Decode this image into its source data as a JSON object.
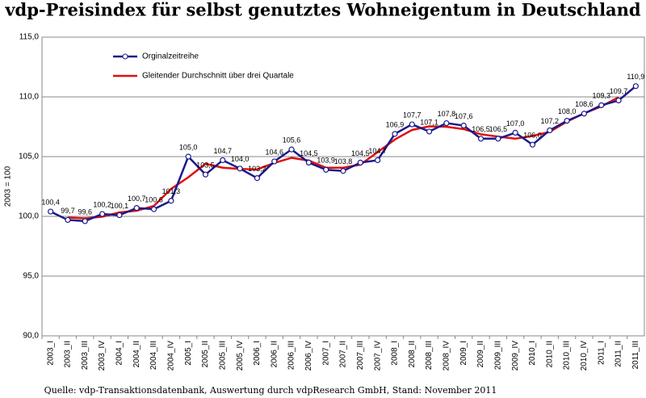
{
  "chart_data": {
    "type": "line",
    "title": "vdp-Preisindex für selbst genutztes Wohneigentum in Deutschland",
    "y_label": "2003 = 100",
    "source": "Quelle: vdp-Transaktionsdatenbank, Auswertung durch vdpResearch GmbH, Stand: November 2011",
    "categories": [
      "2003_I",
      "2003_II",
      "2003_III",
      "2003_IV",
      "2004_I",
      "2004_II",
      "2004_III",
      "2004_IV",
      "2005_I",
      "2005_II",
      "2005_III",
      "2005_IV",
      "2006_I",
      "2006_II",
      "2006_III",
      "2006_IV",
      "2007_I",
      "2007_II",
      "2007_III",
      "2007_IV",
      "2008_I",
      "2008_II",
      "2008_III",
      "2008_IV",
      "2009_I",
      "2009_II",
      "2009_III",
      "2009_IV",
      "2010_I",
      "2010_II",
      "2010_III",
      "2010_IV",
      "2011_I",
      "2011_II",
      "2011_III"
    ],
    "series": [
      {
        "name": "Orginalzeitreihe",
        "color": "#1a1a8c",
        "marker": true,
        "values": [
          100.4,
          99.7,
          99.6,
          100.2,
          100.1,
          100.7,
          100.6,
          101.3,
          105.0,
          103.5,
          104.7,
          104.0,
          103.2,
          104.6,
          105.6,
          104.5,
          103.9,
          103.8,
          104.5,
          104.7,
          106.9,
          107.7,
          107.1,
          107.8,
          107.6,
          106.5,
          106.5,
          107.0,
          106.0,
          107.2,
          108.0,
          108.6,
          109.3,
          109.7,
          110.9
        ],
        "value_labels": [
          "100,4",
          "99,7",
          "99,6",
          "100,2",
          "100,1",
          "100,7",
          "100,6",
          "101,3",
          "105,0",
          "103,5",
          "104,7",
          "104,0",
          "103,2",
          "104,6",
          "105,6",
          "104,5",
          "103,9",
          "103,8",
          "104,5",
          "104,7",
          "106,9",
          "107,7",
          "107,1",
          "107,8",
          "107,6",
          "106,5",
          "106,5",
          "107,0",
          "106,0",
          "107,2",
          "108,0",
          "108,6",
          "109,3",
          "109,7",
          "110,9"
        ]
      },
      {
        "name": "Gleitender Durchschnitt über drei Quartale",
        "color": "#e01010",
        "marker": false,
        "values": [
          null,
          99.9,
          99.83,
          99.97,
          100.33,
          100.47,
          100.87,
          102.3,
          103.27,
          104.4,
          104.07,
          103.97,
          103.93,
          104.47,
          104.9,
          104.67,
          104.07,
          104.07,
          104.33,
          105.37,
          106.43,
          107.23,
          107.53,
          107.5,
          107.3,
          106.87,
          106.67,
          106.5,
          106.73,
          107.07,
          107.93,
          108.63,
          109.2,
          109.97,
          null
        ]
      }
    ],
    "ylim": [
      90,
      115
    ],
    "yticks": [
      {
        "value": 90,
        "label": "90,0"
      },
      {
        "value": 95,
        "label": "95,0"
      },
      {
        "value": 100,
        "label": "100,0"
      },
      {
        "value": 105,
        "label": "105,0"
      },
      {
        "value": 110,
        "label": "110,0"
      },
      {
        "value": 115,
        "label": "115,0"
      }
    ],
    "grid": true,
    "legend": "top-left"
  }
}
